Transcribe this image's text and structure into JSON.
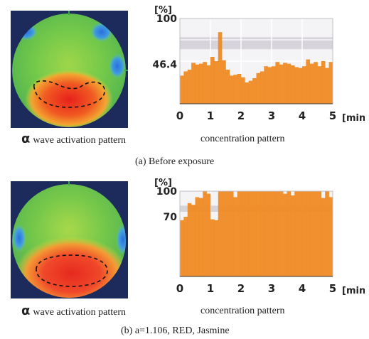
{
  "panels": [
    {
      "caption": "(a)  Before exposure",
      "map_caption_prefix": "α",
      "map_caption": "wave activation pattern",
      "chart_caption": "concentration pattern"
    },
    {
      "caption": "(b)  a=1.106,  RED,  Jasmine",
      "map_caption_prefix": "α",
      "map_caption": "wave activation pattern",
      "chart_caption": "concentration pattern"
    }
  ],
  "chart_data": [
    {
      "type": "bar",
      "ylabel": "[%]",
      "xlabel": "[min]",
      "xlim": [
        0,
        5
      ],
      "ylim": [
        0,
        100
      ],
      "xticks": [
        "0",
        "1",
        "2",
        "3",
        "4",
        "5"
      ],
      "yticks": [
        {
          "value": 100,
          "label": "100"
        },
        {
          "value": 46.4,
          "label": "46.4"
        }
      ],
      "reference_band": [
        64,
        78
      ],
      "grid": true,
      "bar_color": "#f08a24",
      "values": [
        33,
        38,
        40,
        48,
        46,
        47,
        49,
        45,
        55,
        50,
        84,
        51,
        40,
        33,
        34,
        35,
        31,
        25,
        27,
        30,
        36,
        38,
        44,
        43,
        44,
        49,
        46,
        48,
        47,
        45,
        43,
        42,
        44,
        52,
        47,
        49,
        44,
        50,
        42,
        49
      ]
    },
    {
      "type": "bar",
      "ylabel": "[%]",
      "xlabel": "[min]",
      "xlim": [
        0,
        5
      ],
      "ylim": [
        0,
        100
      ],
      "xticks": [
        "0",
        "1",
        "2",
        "3",
        "4",
        "5"
      ],
      "yticks": [
        {
          "value": 100,
          "label": "100"
        },
        {
          "value": 70,
          "label": "70"
        }
      ],
      "reference_band": [
        75,
        83
      ],
      "grid": true,
      "bar_color": "#f08a24",
      "values": [
        66,
        70,
        86,
        84,
        93,
        92,
        100,
        97,
        67,
        66,
        100,
        100,
        100,
        100,
        93,
        100,
        100,
        100,
        100,
        100,
        100,
        100,
        100,
        100,
        100,
        100,
        100,
        97,
        100,
        95,
        100,
        100,
        100,
        100,
        100,
        100,
        100,
        92,
        100,
        93
      ]
    }
  ]
}
